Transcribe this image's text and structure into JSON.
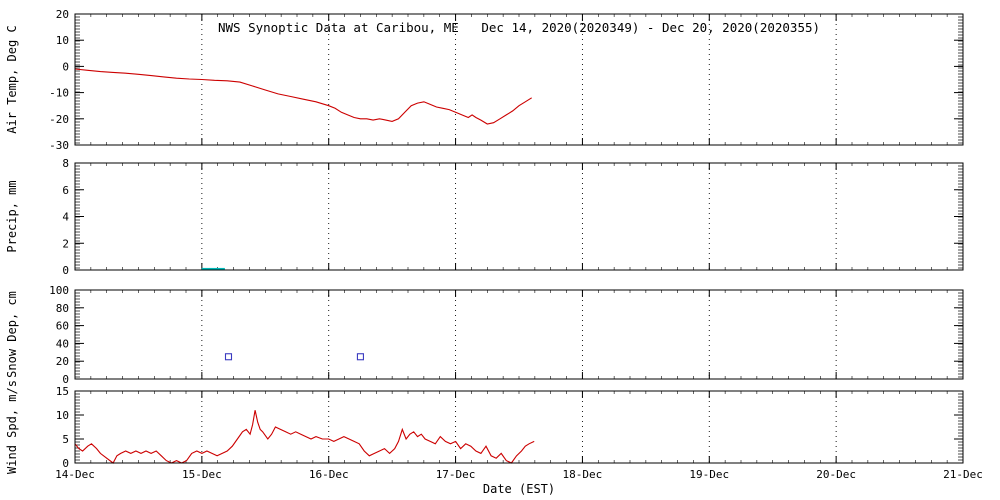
{
  "page": {
    "background": "#ffffff",
    "axis_color": "#000000",
    "grid_color": "#000000"
  },
  "chart_data": {
    "type": "line",
    "title": "NWS Synoptic Data at Caribou, ME   Dec 14, 2020(2020349) - Dec 20, 2020(2020355)",
    "xlabel": "Date (EST)",
    "xlim": [
      14,
      21
    ],
    "x_ticks": [
      14,
      15,
      16,
      17,
      18,
      19,
      20,
      21
    ],
    "x_tick_labels": [
      "14-Dec",
      "15-Dec",
      "16-Dec",
      "17-Dec",
      "18-Dec",
      "19-Dec",
      "20-Dec",
      "21-Dec"
    ],
    "grid": "dotted-vertical-at-each-day",
    "legend_position": "none",
    "panels": [
      {
        "id": "air-temp",
        "ylabel": "Air Temp, Deg C",
        "ylim": [
          -30,
          20
        ],
        "yticks": [
          -30,
          -20,
          -10,
          0,
          10,
          20
        ],
        "style": "line",
        "color": "#cc0000",
        "points": [
          [
            14.0,
            -1.0
          ],
          [
            14.1,
            -1.5
          ],
          [
            14.2,
            -2.0
          ],
          [
            14.3,
            -2.3
          ],
          [
            14.4,
            -2.6
          ],
          [
            14.5,
            -3.0
          ],
          [
            14.6,
            -3.5
          ],
          [
            14.7,
            -4.0
          ],
          [
            14.8,
            -4.5
          ],
          [
            14.9,
            -4.8
          ],
          [
            15.0,
            -5.0
          ],
          [
            15.1,
            -5.3
          ],
          [
            15.2,
            -5.5
          ],
          [
            15.3,
            -6.0
          ],
          [
            15.4,
            -7.5
          ],
          [
            15.5,
            -9.0
          ],
          [
            15.6,
            -10.5
          ],
          [
            15.7,
            -11.5
          ],
          [
            15.8,
            -12.5
          ],
          [
            15.9,
            -13.5
          ],
          [
            16.0,
            -15.0
          ],
          [
            16.05,
            -16.0
          ],
          [
            16.1,
            -17.5
          ],
          [
            16.15,
            -18.5
          ],
          [
            16.2,
            -19.5
          ],
          [
            16.25,
            -20.0
          ],
          [
            16.3,
            -20.0
          ],
          [
            16.35,
            -20.5
          ],
          [
            16.4,
            -20.0
          ],
          [
            16.45,
            -20.5
          ],
          [
            16.5,
            -21.0
          ],
          [
            16.55,
            -20.0
          ],
          [
            16.6,
            -17.5
          ],
          [
            16.65,
            -15.0
          ],
          [
            16.7,
            -14.0
          ],
          [
            16.75,
            -13.5
          ],
          [
            16.8,
            -14.5
          ],
          [
            16.85,
            -15.5
          ],
          [
            16.9,
            -16.0
          ],
          [
            16.95,
            -16.5
          ],
          [
            17.0,
            -17.5
          ],
          [
            17.05,
            -18.5
          ],
          [
            17.1,
            -19.5
          ],
          [
            17.13,
            -18.5
          ],
          [
            17.16,
            -19.5
          ],
          [
            17.2,
            -20.5
          ],
          [
            17.25,
            -22.0
          ],
          [
            17.3,
            -21.5
          ],
          [
            17.35,
            -20.0
          ],
          [
            17.4,
            -18.5
          ],
          [
            17.45,
            -17.0
          ],
          [
            17.5,
            -15.0
          ],
          [
            17.55,
            -13.5
          ],
          [
            17.6,
            -12.0
          ]
        ]
      },
      {
        "id": "precip",
        "ylabel": "Precip, mm",
        "ylim": [
          0,
          8
        ],
        "yticks": [
          0,
          2,
          4,
          6,
          8
        ],
        "style": "dashes",
        "color": "#00b9b9",
        "points": [
          [
            15.03,
            0.08
          ],
          [
            15.09,
            0.08
          ],
          [
            15.15,
            0.08
          ]
        ]
      },
      {
        "id": "snow-depth",
        "ylabel": "Snow Dep, cm",
        "ylim": [
          0,
          100
        ],
        "yticks": [
          0,
          20,
          40,
          60,
          80,
          100
        ],
        "style": "squares",
        "color": "#3a3ac0",
        "points": [
          [
            15.21,
            25
          ],
          [
            16.25,
            25
          ]
        ]
      },
      {
        "id": "wind-speed",
        "ylabel": "Wind Spd, m/s",
        "ylim": [
          0,
          15
        ],
        "yticks": [
          0,
          5,
          10,
          15
        ],
        "style": "line",
        "color": "#cc0000",
        "points": [
          [
            14.0,
            4.0
          ],
          [
            14.03,
            3.0
          ],
          [
            14.06,
            2.5
          ],
          [
            14.1,
            3.5
          ],
          [
            14.13,
            4.0
          ],
          [
            14.17,
            3.0
          ],
          [
            14.2,
            2.0
          ],
          [
            14.25,
            1.0
          ],
          [
            14.3,
            0.0
          ],
          [
            14.33,
            1.5
          ],
          [
            14.36,
            2.0
          ],
          [
            14.4,
            2.5
          ],
          [
            14.44,
            2.0
          ],
          [
            14.48,
            2.5
          ],
          [
            14.52,
            2.0
          ],
          [
            14.56,
            2.5
          ],
          [
            14.6,
            2.0
          ],
          [
            14.64,
            2.5
          ],
          [
            14.68,
            1.5
          ],
          [
            14.72,
            0.5
          ],
          [
            14.76,
            0.0
          ],
          [
            14.8,
            0.5
          ],
          [
            14.84,
            0.0
          ],
          [
            14.88,
            0.5
          ],
          [
            14.92,
            2.0
          ],
          [
            14.96,
            2.5
          ],
          [
            15.0,
            2.0
          ],
          [
            15.04,
            2.5
          ],
          [
            15.08,
            2.0
          ],
          [
            15.12,
            1.5
          ],
          [
            15.16,
            2.0
          ],
          [
            15.2,
            2.5
          ],
          [
            15.24,
            3.5
          ],
          [
            15.28,
            5.0
          ],
          [
            15.32,
            6.5
          ],
          [
            15.35,
            7.0
          ],
          [
            15.38,
            6.0
          ],
          [
            15.4,
            8.0
          ],
          [
            15.42,
            11.0
          ],
          [
            15.44,
            8.5
          ],
          [
            15.46,
            7.0
          ],
          [
            15.48,
            6.5
          ],
          [
            15.52,
            5.0
          ],
          [
            15.55,
            6.0
          ],
          [
            15.58,
            7.5
          ],
          [
            15.62,
            7.0
          ],
          [
            15.66,
            6.5
          ],
          [
            15.7,
            6.0
          ],
          [
            15.74,
            6.5
          ],
          [
            15.78,
            6.0
          ],
          [
            15.82,
            5.5
          ],
          [
            15.86,
            5.0
          ],
          [
            15.9,
            5.5
          ],
          [
            15.95,
            5.0
          ],
          [
            16.0,
            5.0
          ],
          [
            16.04,
            4.5
          ],
          [
            16.08,
            5.0
          ],
          [
            16.12,
            5.5
          ],
          [
            16.16,
            5.0
          ],
          [
            16.2,
            4.5
          ],
          [
            16.24,
            4.0
          ],
          [
            16.28,
            2.5
          ],
          [
            16.32,
            1.5
          ],
          [
            16.36,
            2.0
          ],
          [
            16.4,
            2.5
          ],
          [
            16.44,
            3.0
          ],
          [
            16.48,
            2.0
          ],
          [
            16.52,
            3.0
          ],
          [
            16.55,
            4.5
          ],
          [
            16.58,
            7.0
          ],
          [
            16.61,
            5.0
          ],
          [
            16.64,
            6.0
          ],
          [
            16.67,
            6.5
          ],
          [
            16.7,
            5.5
          ],
          [
            16.73,
            6.0
          ],
          [
            16.76,
            5.0
          ],
          [
            16.8,
            4.5
          ],
          [
            16.84,
            4.0
          ],
          [
            16.88,
            5.5
          ],
          [
            16.92,
            4.5
          ],
          [
            16.96,
            4.0
          ],
          [
            17.0,
            4.5
          ],
          [
            17.04,
            3.0
          ],
          [
            17.08,
            4.0
          ],
          [
            17.12,
            3.5
          ],
          [
            17.16,
            2.5
          ],
          [
            17.2,
            2.0
          ],
          [
            17.24,
            3.5
          ],
          [
            17.28,
            1.5
          ],
          [
            17.32,
            1.0
          ],
          [
            17.36,
            2.0
          ],
          [
            17.4,
            0.5
          ],
          [
            17.44,
            0.0
          ],
          [
            17.48,
            1.5
          ],
          [
            17.52,
            2.5
          ],
          [
            17.55,
            3.5
          ],
          [
            17.58,
            4.0
          ],
          [
            17.62,
            4.5
          ]
        ]
      }
    ]
  }
}
